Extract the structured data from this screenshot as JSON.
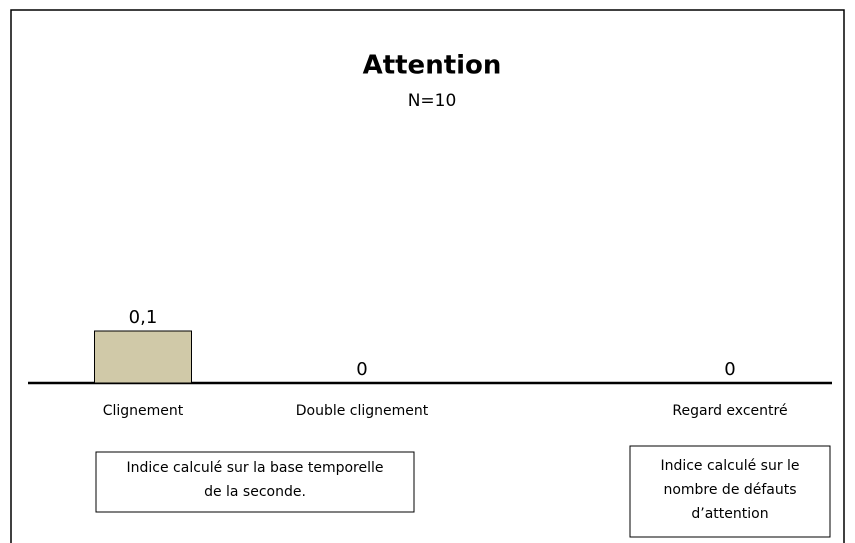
{
  "chart_data": {
    "type": "bar",
    "title": "Attention",
    "subtitle": "N=10",
    "categories": [
      "Clignement",
      "Double clignement",
      "Regard excentré"
    ],
    "values": [
      0.1,
      0,
      0
    ],
    "value_labels": [
      "0,1",
      "0",
      "0"
    ],
    "color": "#d0c9a8",
    "annotations": [
      {
        "lines": [
          "Indice calculé sur la base temporelle",
          "de la seconde."
        ]
      },
      {
        "lines": [
          "Indice calculé sur le",
          "nombre de défauts",
          "d’attention"
        ]
      }
    ]
  }
}
